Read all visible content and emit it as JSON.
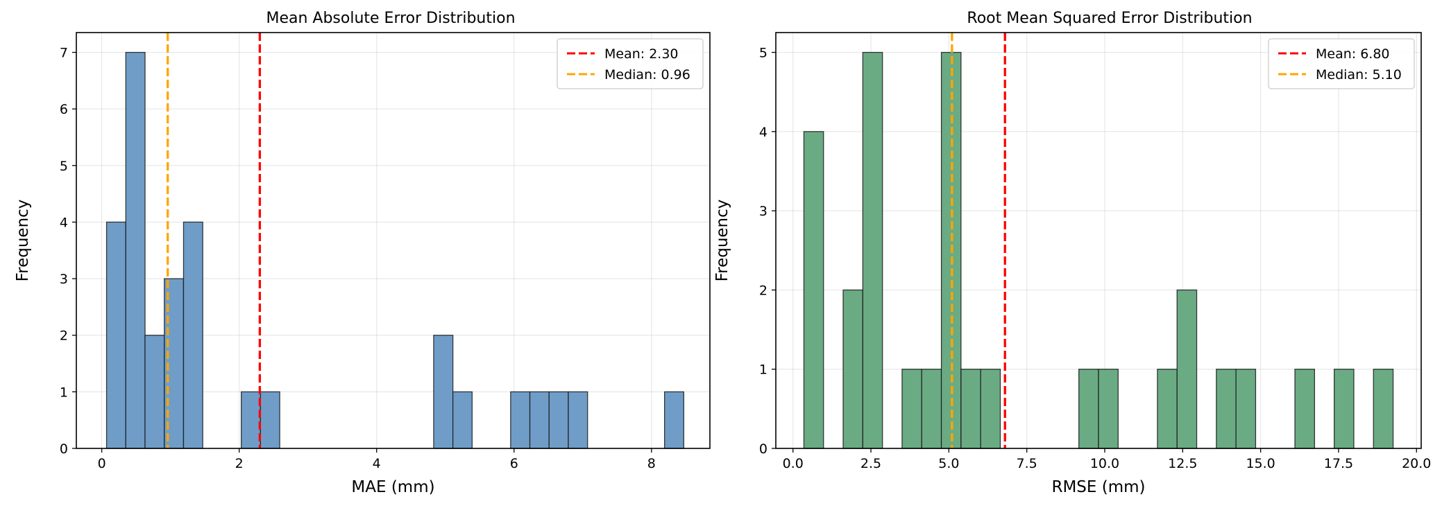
{
  "chart_data": [
    {
      "type": "histogram",
      "title": "Mean Absolute Error Distribution",
      "xlabel": "MAE (mm)",
      "ylabel": "Frequency",
      "xlim": [
        -0.37,
        8.85
      ],
      "ylim": [
        0,
        7.35
      ],
      "xticks": [
        0,
        2,
        4,
        6,
        8
      ],
      "xtick_labels": [
        "0",
        "2",
        "4",
        "6",
        "8"
      ],
      "yticks": [
        0,
        1,
        2,
        3,
        4,
        5,
        6,
        7
      ],
      "ytick_labels": [
        "0",
        "1",
        "2",
        "3",
        "4",
        "5",
        "6",
        "7"
      ],
      "grid": true,
      "bar_color": "#6f9dc8",
      "bin_edges": [
        0.07,
        0.35,
        0.63,
        0.91,
        1.19,
        1.47,
        1.75,
        2.03,
        2.31,
        2.59,
        2.87,
        3.15,
        3.43,
        3.71,
        3.99,
        4.27,
        4.55,
        4.83,
        5.11,
        5.39,
        5.67,
        5.95,
        6.23,
        6.51,
        6.79,
        7.07,
        7.35,
        7.63,
        7.91,
        8.19,
        8.47
      ],
      "counts": [
        4,
        7,
        2,
        3,
        4,
        0,
        0,
        1,
        1,
        0,
        0,
        0,
        0,
        0,
        0,
        0,
        0,
        2,
        1,
        0,
        0,
        1,
        1,
        1,
        1,
        0,
        0,
        0,
        0,
        1
      ],
      "lines": [
        {
          "label": "Mean: 2.30",
          "value": 2.3,
          "color": "#ff0000"
        },
        {
          "label": "Median: 0.96",
          "value": 0.96,
          "color": "#ffa500"
        }
      ],
      "legend_position": "upper right"
    },
    {
      "type": "histogram",
      "title": "Root Mean Squared Error Distribution",
      "xlabel": "RMSE (mm)",
      "ylabel": "Frequency",
      "xlim": [
        -0.55,
        20.15
      ],
      "ylim": [
        0,
        5.25
      ],
      "xticks": [
        0,
        2.5,
        5,
        7.5,
        10,
        12.5,
        15,
        17.5,
        20
      ],
      "xtick_labels": [
        "0.0",
        "2.5",
        "5.0",
        "7.5",
        "10.0",
        "12.5",
        "15.0",
        "17.5",
        "20.0"
      ],
      "yticks": [
        0,
        1,
        2,
        3,
        4,
        5
      ],
      "ytick_labels": [
        "0",
        "1",
        "2",
        "3",
        "4",
        "5"
      ],
      "grid": true,
      "bar_color": "#6aab84",
      "bin_edges": [
        0.35,
        0.98,
        1.61,
        2.24,
        2.87,
        3.5,
        4.13,
        4.76,
        5.39,
        6.02,
        6.65,
        7.28,
        7.91,
        8.54,
        9.17,
        9.8,
        10.43,
        11.06,
        11.69,
        12.32,
        12.95,
        13.58,
        14.21,
        14.84,
        15.47,
        16.1,
        16.73,
        17.36,
        17.99,
        18.62,
        19.25
      ],
      "counts": [
        4,
        0,
        2,
        5,
        0,
        1,
        1,
        5,
        1,
        1,
        0,
        0,
        0,
        0,
        1,
        1,
        0,
        0,
        1,
        2,
        0,
        1,
        1,
        0,
        0,
        1,
        0,
        1,
        0,
        1
      ],
      "lines": [
        {
          "label": "Mean: 6.80",
          "value": 6.8,
          "color": "#ff0000"
        },
        {
          "label": "Median: 5.10",
          "value": 5.1,
          "color": "#ffa500"
        }
      ],
      "legend_position": "upper right"
    }
  ]
}
